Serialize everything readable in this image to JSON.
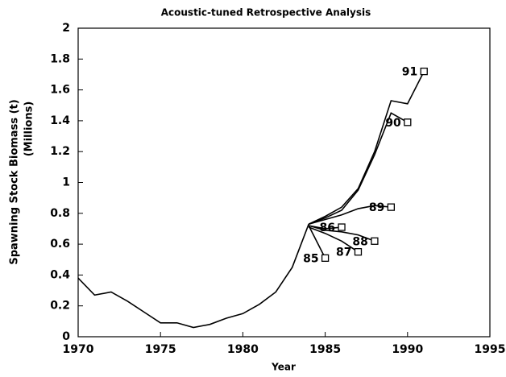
{
  "chart_data": {
    "type": "line",
    "title": "Acoustic-tuned Retrospective Analysis",
    "xlabel": "Year",
    "ylabel": [
      "Spawning Stock Biomass (t)",
      "(Millions)"
    ],
    "x": [
      1970,
      1971,
      1972,
      1973,
      1974,
      1975,
      1976,
      1977,
      1978,
      1979,
      1980,
      1981,
      1982,
      1983,
      1984,
      1985,
      1986,
      1987,
      1988,
      1989,
      1990,
      1991
    ],
    "series": [
      {
        "color": "#000000",
        "values": [
          0.38,
          0.27,
          0.29,
          0.23,
          0.16,
          0.09,
          0.09,
          0.06,
          0.08,
          0.12,
          0.15,
          0.21,
          0.29,
          0.45,
          0.73,
          null,
          null,
          null,
          null,
          null,
          null,
          null
        ]
      },
      {
        "name": "85",
        "color": "#000000",
        "values": [
          null,
          null,
          null,
          null,
          null,
          null,
          null,
          null,
          null,
          null,
          null,
          null,
          null,
          null,
          0.72,
          0.51,
          null,
          null,
          null,
          null,
          null,
          null
        ]
      },
      {
        "name": "86",
        "color": "#000000",
        "values": [
          null,
          null,
          null,
          null,
          null,
          null,
          null,
          null,
          null,
          null,
          null,
          null,
          null,
          null,
          0.72,
          0.7,
          0.71,
          null,
          null,
          null,
          null,
          null
        ]
      },
      {
        "name": "87",
        "color": "#000000",
        "values": [
          null,
          null,
          null,
          null,
          null,
          null,
          null,
          null,
          null,
          null,
          null,
          null,
          null,
          null,
          0.71,
          0.67,
          0.62,
          0.55,
          null,
          null,
          null,
          null
        ]
      },
      {
        "name": "88",
        "color": "#000000",
        "values": [
          null,
          null,
          null,
          null,
          null,
          null,
          null,
          null,
          null,
          null,
          null,
          null,
          null,
          null,
          0.72,
          0.69,
          0.68,
          0.66,
          0.62,
          null,
          null,
          null
        ]
      },
      {
        "name": "89",
        "color": "#000000",
        "values": [
          null,
          null,
          null,
          null,
          null,
          null,
          null,
          null,
          null,
          null,
          null,
          null,
          null,
          null,
          0.73,
          0.76,
          0.79,
          0.83,
          0.85,
          0.84,
          null,
          null
        ]
      },
      {
        "name": "90",
        "color": "#000000",
        "values": [
          null,
          null,
          null,
          null,
          null,
          null,
          null,
          null,
          null,
          null,
          null,
          null,
          null,
          null,
          0.73,
          0.77,
          0.82,
          0.95,
          1.18,
          1.45,
          1.39,
          null
        ]
      },
      {
        "name": "91",
        "color": "#000000",
        "values": [
          null,
          null,
          null,
          null,
          null,
          null,
          null,
          null,
          null,
          null,
          null,
          null,
          null,
          null,
          0.73,
          0.78,
          0.84,
          0.96,
          1.2,
          1.53,
          1.51,
          1.72
        ]
      }
    ],
    "xlim": [
      1970,
      1995
    ],
    "xticks": [
      1970,
      1975,
      1980,
      1985,
      1990,
      1995
    ],
    "ylim": [
      0,
      2
    ],
    "yticks": [
      0,
      0.2,
      0.4,
      0.6,
      0.8,
      1,
      1.2,
      1.4,
      1.6,
      1.8,
      2
    ],
    "grid": false
  }
}
